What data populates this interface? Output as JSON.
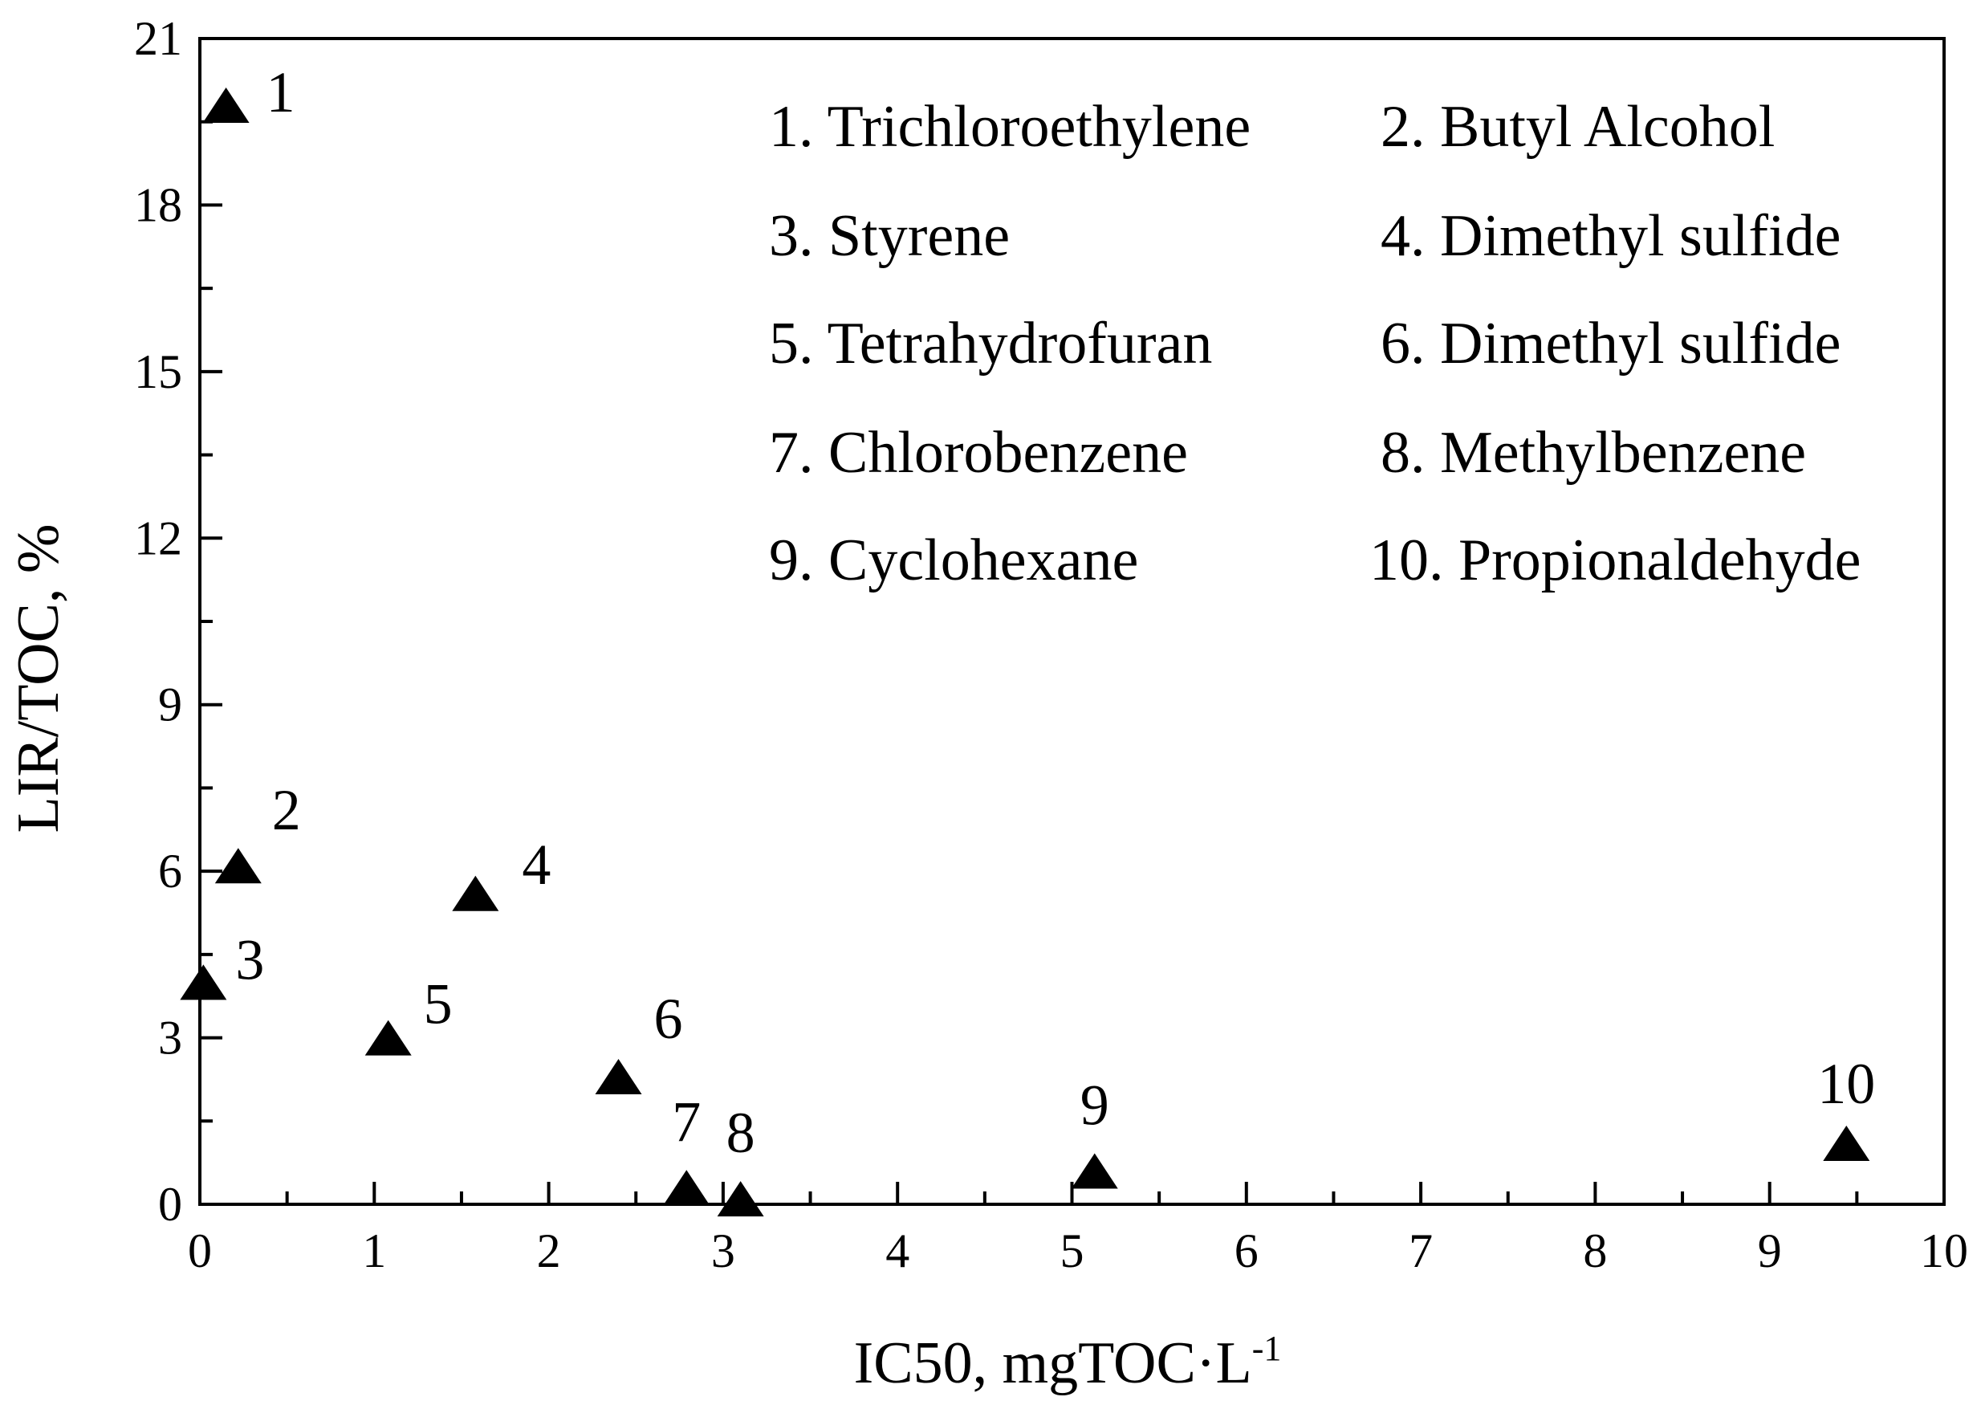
{
  "chart_data": {
    "type": "scatter",
    "xlabel": "IC50, mgTOC·L",
    "xlabel_superscript": "-1",
    "ylabel": "LIR/TOC, %",
    "xlim": [
      0,
      10
    ],
    "ylim": [
      0,
      21
    ],
    "xticks": [
      "0",
      "1",
      "2",
      "3",
      "4",
      "5",
      "6",
      "7",
      "8",
      "9",
      "10"
    ],
    "yticks": [
      "0",
      "3",
      "6",
      "9",
      "12",
      "15",
      "18",
      "21"
    ],
    "grid": false,
    "marker": "filled-triangle",
    "color": "#000000",
    "points": [
      {
        "label": "1",
        "x": 0.15,
        "y": 19.8
      },
      {
        "label": "2",
        "x": 0.22,
        "y": 6.1
      },
      {
        "label": "3",
        "x": 0.02,
        "y": 4.0
      },
      {
        "label": "4",
        "x": 1.58,
        "y": 5.6
      },
      {
        "label": "5",
        "x": 1.08,
        "y": 3.0
      },
      {
        "label": "6",
        "x": 2.4,
        "y": 2.3
      },
      {
        "label": "7",
        "x": 2.79,
        "y": 0.3
      },
      {
        "label": "8",
        "x": 3.1,
        "y": 0.1
      },
      {
        "label": "9",
        "x": 5.13,
        "y": 0.6
      },
      {
        "label": "10",
        "x": 9.44,
        "y": 1.1
      }
    ],
    "legend": {
      "placement": "top-right",
      "entries": [
        "1. Trichloroethylene",
        "2. Butyl Alcohol",
        "3. Styrene",
        "4. Dimethyl sulfide",
        "5. Tetrahydrofuran",
        "6. Dimethyl sulfide",
        "7. Chlorobenzene",
        "8. Methylbenzene",
        "9. Cyclohexane",
        "10. Propionaldehyde"
      ]
    }
  }
}
